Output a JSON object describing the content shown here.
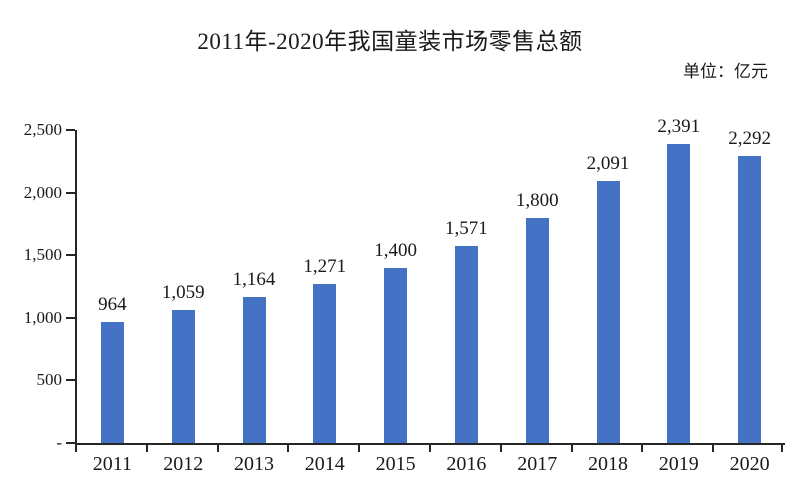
{
  "chart_data": {
    "type": "bar",
    "title": "2011年-2020年我国童装市场零售总额",
    "unit_label": "单位：亿元",
    "categories": [
      "2011",
      "2012",
      "2013",
      "2014",
      "2015",
      "2016",
      "2017",
      "2018",
      "2019",
      "2020"
    ],
    "values": [
      964,
      1059,
      1164,
      1271,
      1400,
      1571,
      1800,
      2091,
      2391,
      2292
    ],
    "value_labels": [
      "964",
      "1,059",
      "1,164",
      "1,271",
      "1,400",
      "1,571",
      "1,800",
      "2,091",
      "2,391",
      "2,292"
    ],
    "xlabel": "",
    "ylabel": "",
    "ylim": [
      0,
      2500
    ],
    "y_ticks": {
      "values": [
        0,
        500,
        1000,
        1500,
        2000,
        2500
      ],
      "labels": [
        "-",
        "500",
        "1,000",
        "1,500",
        "2,000",
        "2,500"
      ]
    },
    "grid": false,
    "legend": "none",
    "colors": {
      "bar": "#4472C4",
      "axis": "#262626",
      "text": "#1a1a1a"
    }
  }
}
